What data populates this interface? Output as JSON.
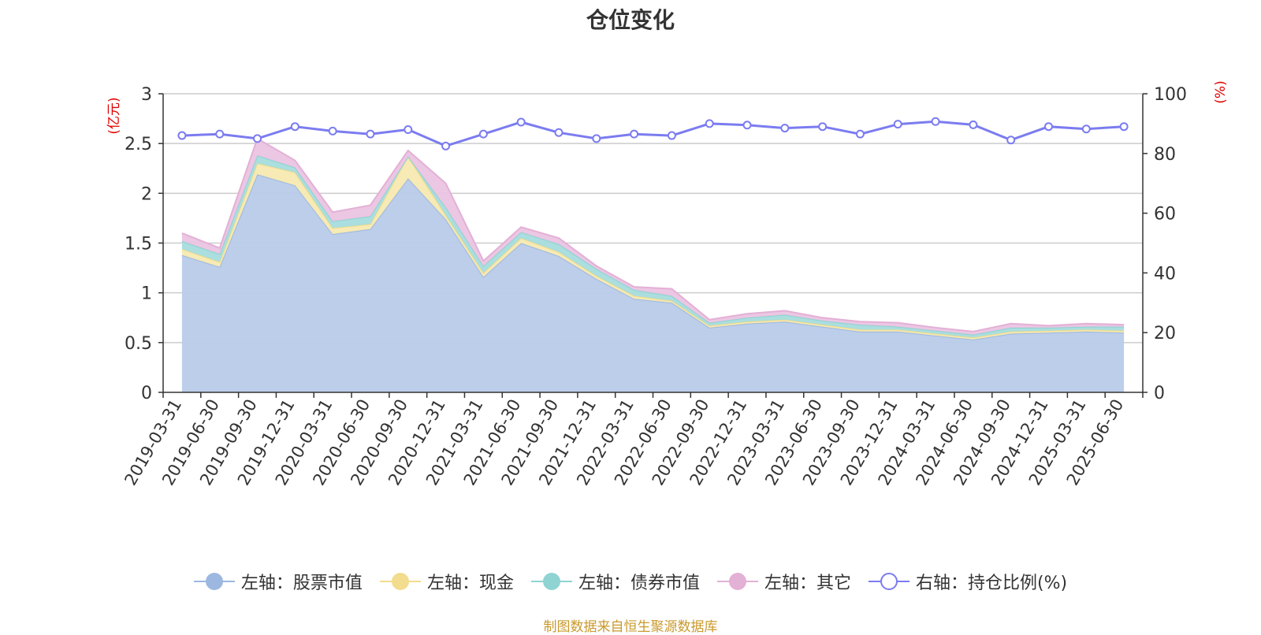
{
  "chart_data": {
    "type": "area",
    "title": "仓位变化",
    "categories": [
      "2019-03-31",
      "2019-06-30",
      "2019-09-30",
      "2019-12-31",
      "2020-03-31",
      "2020-06-30",
      "2020-09-30",
      "2020-12-31",
      "2021-03-31",
      "2021-06-30",
      "2021-09-30",
      "2021-12-31",
      "2022-03-31",
      "2022-06-30",
      "2022-09-30",
      "2022-12-31",
      "2023-03-31",
      "2023-06-30",
      "2023-09-30",
      "2023-12-31",
      "2024-03-31",
      "2024-06-30",
      "2024-09-30",
      "2024-12-31",
      "2025-03-31",
      "2025-06-30"
    ],
    "left_axis": {
      "unit_label": "(亿元)",
      "ylim": [
        0,
        3
      ],
      "ticks": [
        "0",
        "0.5",
        "1",
        "1.5",
        "2",
        "2.5",
        "3"
      ],
      "tick_values": [
        0,
        0.5,
        1,
        1.5,
        2,
        2.5,
        3
      ]
    },
    "right_axis": {
      "unit_label": "(%)",
      "ylim": [
        0,
        100
      ],
      "ticks": [
        "0",
        "20",
        "40",
        "60",
        "80",
        "100"
      ],
      "tick_values": [
        0,
        20,
        40,
        60,
        80,
        100
      ]
    },
    "grid": true,
    "legend_position": "bottom",
    "stacked_series": [
      {
        "name": "左轴：股票市值",
        "color": "#9db8e0",
        "fill": "#b8cbe9",
        "values": [
          1.38,
          1.26,
          2.19,
          2.08,
          1.59,
          1.64,
          2.15,
          1.74,
          1.16,
          1.5,
          1.37,
          1.14,
          0.94,
          0.9,
          0.65,
          0.69,
          0.71,
          0.66,
          0.61,
          0.61,
          0.57,
          0.53,
          0.59,
          0.6,
          0.61,
          0.6
        ]
      },
      {
        "name": "左轴：现金",
        "color": "#f2dc8e",
        "fill": "#f7e9b0",
        "values": [
          0.06,
          0.05,
          0.11,
          0.13,
          0.06,
          0.05,
          0.22,
          0.04,
          0.04,
          0.05,
          0.04,
          0.03,
          0.03,
          0.02,
          0.02,
          0.02,
          0.02,
          0.02,
          0.02,
          0.02,
          0.02,
          0.02,
          0.02,
          0.02,
          0.02,
          0.02
        ]
      },
      {
        "name": "左轴：债券市值",
        "color": "#8fd3d3",
        "fill": "#a6dcdc",
        "values": [
          0.08,
          0.08,
          0.08,
          0.05,
          0.07,
          0.08,
          0.0,
          0.08,
          0.07,
          0.06,
          0.08,
          0.07,
          0.06,
          0.05,
          0.03,
          0.04,
          0.05,
          0.04,
          0.05,
          0.03,
          0.03,
          0.03,
          0.04,
          0.03,
          0.03,
          0.04
        ]
      },
      {
        "name": "左轴：其它",
        "color": "#e3b0d6",
        "fill": "#ebc4e1",
        "values": [
          0.08,
          0.06,
          0.17,
          0.07,
          0.09,
          0.11,
          0.06,
          0.24,
          0.05,
          0.05,
          0.06,
          0.03,
          0.03,
          0.07,
          0.03,
          0.04,
          0.04,
          0.03,
          0.03,
          0.04,
          0.03,
          0.03,
          0.04,
          0.02,
          0.03,
          0.02
        ]
      }
    ],
    "line_series": {
      "name": "右轴：持仓比例(%)",
      "color": "#7b7cf0",
      "axis": "right",
      "values": [
        86,
        86.5,
        85,
        89,
        87.5,
        86.5,
        88,
        82.5,
        86.5,
        90.5,
        87,
        85,
        86.5,
        86,
        90,
        89.5,
        88.5,
        89,
        86.5,
        89.8,
        90.7,
        89.6,
        84.5,
        89,
        88.2,
        89
      ]
    }
  },
  "footer": {
    "source_note": "制图数据来自恒生聚源数据库"
  }
}
